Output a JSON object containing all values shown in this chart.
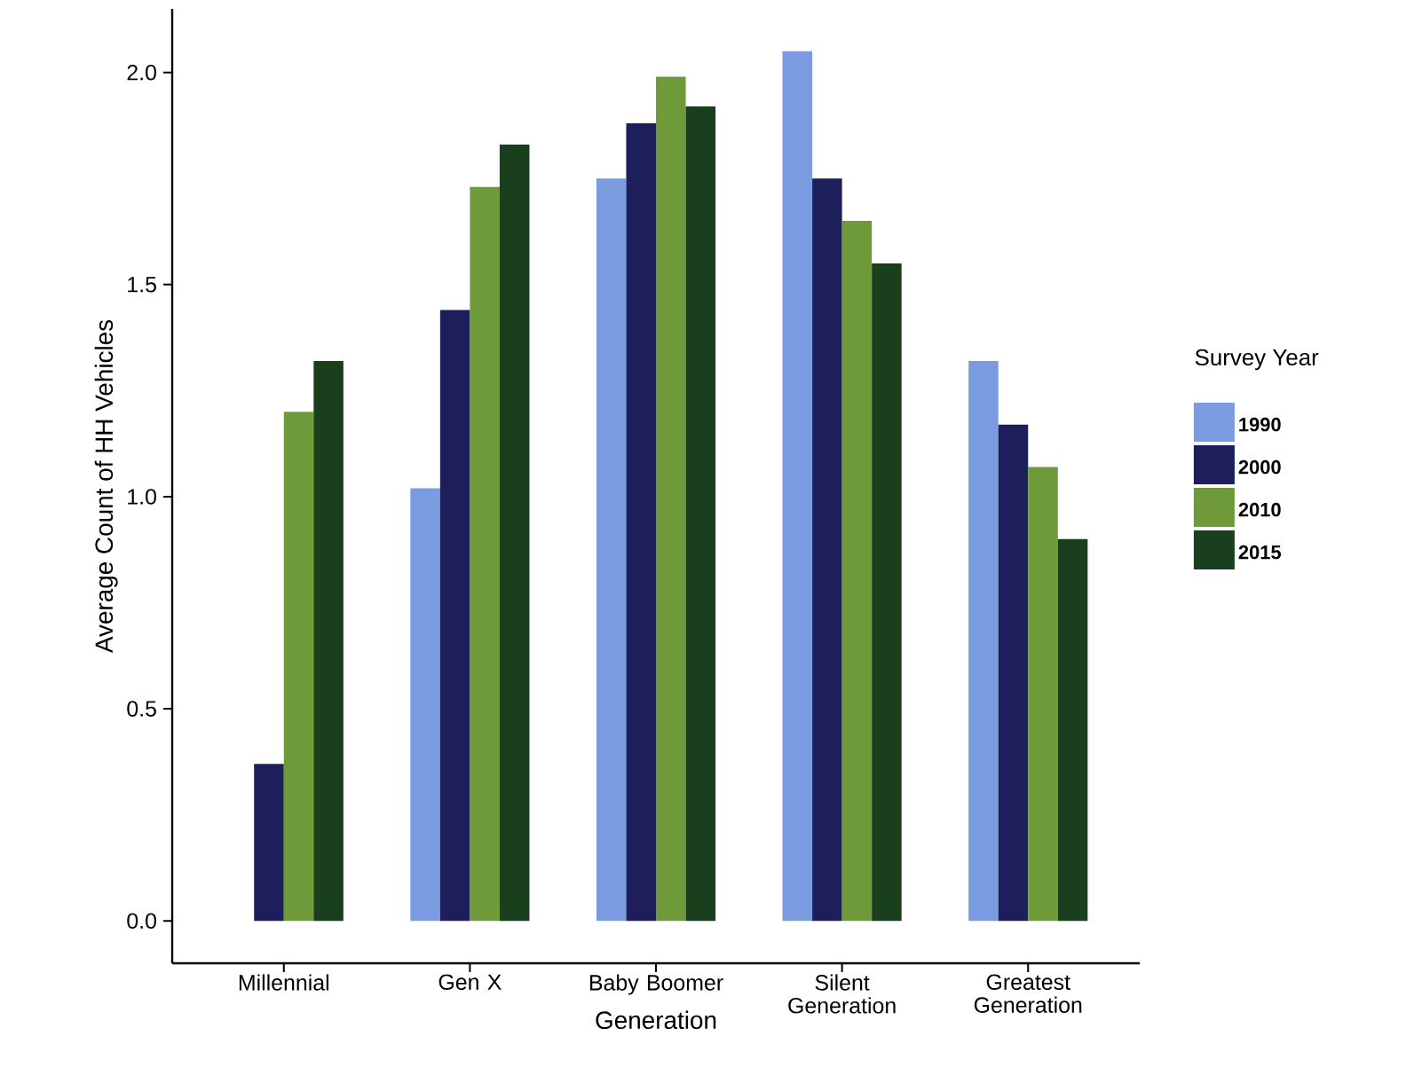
{
  "chart_data": {
    "type": "bar",
    "xlabel": "Generation",
    "ylabel": "Average Count of HH Vehicles",
    "legend_title": "Survey Year",
    "categories": [
      "Millennial",
      "Gen X",
      "Baby Boomer",
      "Silent Generation",
      "Greatest Generation"
    ],
    "series": [
      {
        "name": "1990",
        "color": "#7b9be0",
        "values": [
          null,
          1.02,
          1.75,
          2.05,
          1.32
        ]
      },
      {
        "name": "2000",
        "color": "#1c1f5c",
        "values": [
          0.37,
          1.44,
          1.88,
          1.75,
          1.17
        ]
      },
      {
        "name": "2010",
        "color": "#6e9a3a",
        "values": [
          1.2,
          1.73,
          1.99,
          1.65,
          1.07
        ]
      },
      {
        "name": "2015",
        "color": "#1a3f1c",
        "values": [
          1.32,
          1.83,
          1.92,
          1.55,
          0.9
        ]
      }
    ],
    "ylim": [
      -0.1,
      2.15
    ],
    "yticks": [
      {
        "value": 0,
        "label": "0.0"
      },
      {
        "value": 0.5,
        "label": "0.5"
      },
      {
        "value": 1,
        "label": "1.0"
      },
      {
        "value": 1.5,
        "label": "1.5"
      },
      {
        "value": 2,
        "label": "2.0"
      }
    ],
    "grid": false,
    "legend": "right"
  }
}
